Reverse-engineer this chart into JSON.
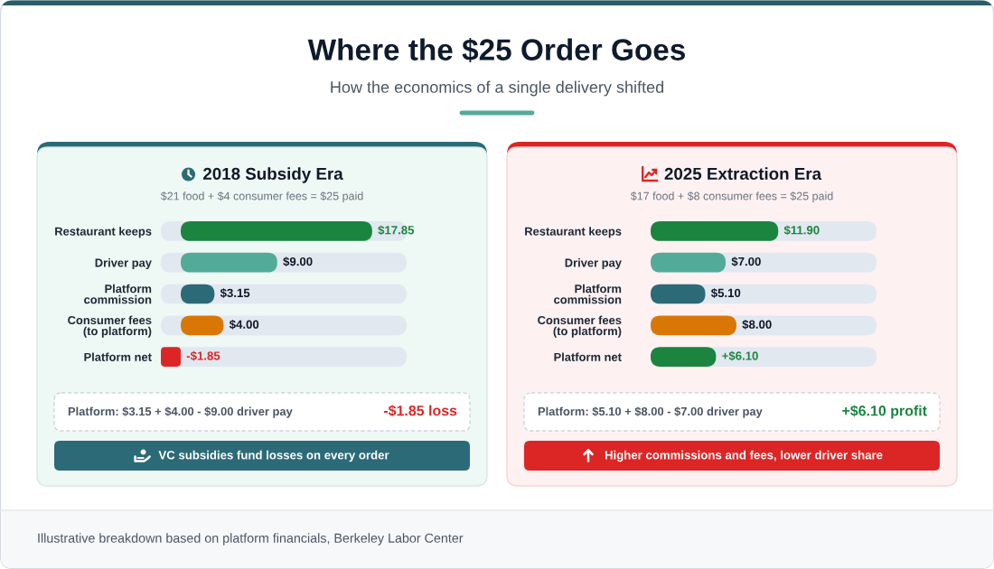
{
  "chart_data": [
    {
      "type": "other",
      "title": "Where the $25 Order Goes",
      "subtitle": "How the economics of a single delivery shifted"
    },
    {
      "type": "bar",
      "orientation": "horizontal",
      "title": "2018 Subsidy Era",
      "subtitle": "$21 food + $4 consumer fees = $25 paid",
      "categories": [
        "Restaurant keeps",
        "Driver pay",
        "Platform\ncommission",
        "Consumer fees\n(to platform)",
        "Platform net"
      ],
      "values": [
        17.85,
        9.0,
        3.15,
        4.0,
        -1.85
      ],
      "colors": [
        "#1b843f",
        "#52ab98",
        "#2c6a78",
        "#d97706",
        "#dc2626"
      ],
      "value_labels": [
        "$17.85",
        "$9.00",
        "$3.15",
        "$4.00",
        "-$1.85"
      ],
      "tick_labels": "y",
      "annotations": [
        "Platform: $3.15 + $4.00 - $9.00 driver pay",
        "-$1.85 loss",
        "VC subsidies fund losses on every order"
      ]
    },
    {
      "type": "bar",
      "orientation": "horizontal",
      "title": "2025 Extraction Era",
      "subtitle": "$17 food + $8 consumer fees = $25 paid",
      "categories": [
        "Restaurant keeps",
        "Driver pay",
        "Platform\ncommission",
        "Consumer fees\n(to platform)",
        "Platform net"
      ],
      "values": [
        11.9,
        7.0,
        5.1,
        8.0,
        6.1
      ],
      "colors": [
        "#1b843f",
        "#52ab98",
        "#2c6a78",
        "#d97706",
        "#1b843f"
      ],
      "value_labels": [
        "$11.90",
        "$7.00",
        "$5.10",
        "$8.00",
        "+$6.10"
      ],
      "tick_labels": "y",
      "annotations": [
        "Platform: $5.10 + $8.00 - $7.00 driver pay",
        "+$6.10 profit",
        "Higher commissions and fees, lower driver share"
      ]
    },
    {
      "type": "other",
      "annotations": [
        "Illustrative breakdown based on platform financials, Berkeley Labor Center"
      ]
    }
  ]
}
